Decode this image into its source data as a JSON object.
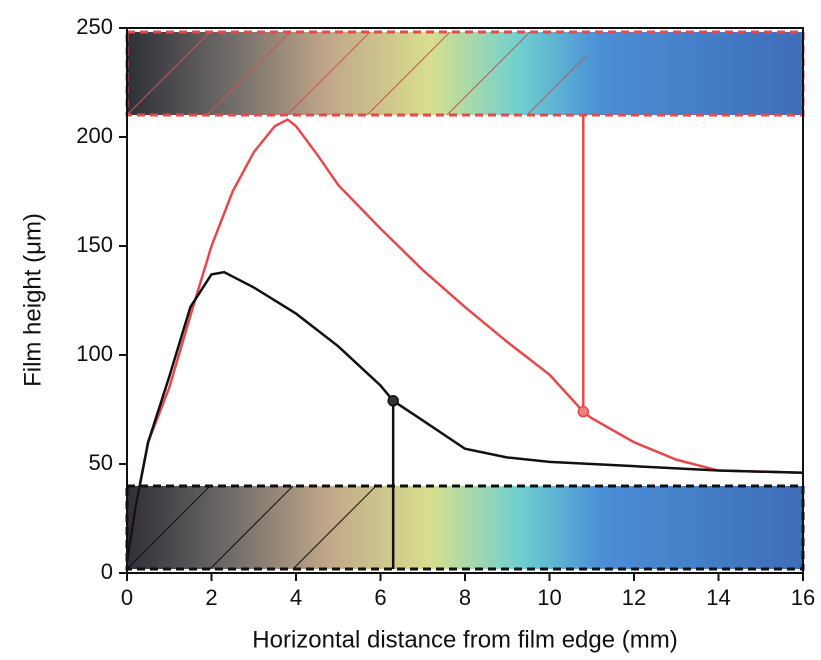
{
  "chart_data": {
    "type": "line",
    "xlabel": "Horizontal distance from film edge (mm)",
    "ylabel": "Film height (μm)",
    "xlim": [
      0,
      16
    ],
    "xticks": [
      0,
      2,
      4,
      6,
      8,
      10,
      12,
      14,
      16
    ],
    "ylim": [
      0,
      250
    ],
    "yticks": [
      0,
      50,
      100,
      150,
      200,
      250
    ],
    "series": [
      {
        "color": "#e8484a",
        "x": [
          0,
          0.2,
          0.5,
          1,
          1.5,
          2,
          2.5,
          3,
          3.5,
          3.8,
          4,
          4.5,
          5,
          6,
          7,
          8,
          9,
          10,
          10.8,
          11,
          12,
          13,
          14,
          15,
          16
        ],
        "values": [
          5,
          30,
          60,
          85,
          118,
          150,
          175,
          193,
          205,
          208,
          205,
          192,
          178,
          158,
          139,
          122,
          106,
          91,
          74,
          71,
          60,
          52,
          47,
          46.5,
          46
        ]
      },
      {
        "color": "#111111",
        "x": [
          0,
          0.2,
          0.5,
          1,
          1.5,
          2,
          2.3,
          3,
          4,
          5,
          6,
          6.3,
          7,
          8,
          9,
          10,
          12,
          14,
          16
        ],
        "values": [
          5,
          30,
          60,
          90,
          122,
          137,
          138,
          131,
          119,
          104,
          86,
          79,
          70,
          57,
          53,
          51,
          49,
          47,
          46
        ]
      }
    ]
  }
}
